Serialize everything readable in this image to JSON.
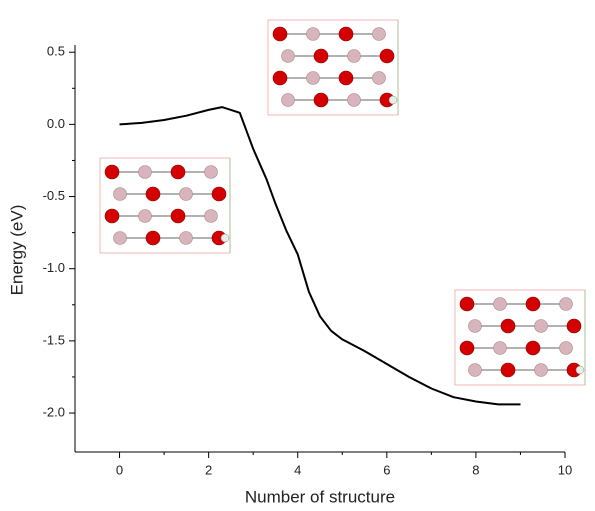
{
  "chart_data": {
    "type": "line",
    "x_label": "Number of structure",
    "y_label": "Energy (eV)",
    "xlim": [
      -1,
      10
    ],
    "xticks": [
      0,
      2,
      4,
      6,
      8,
      10
    ],
    "ylim": [
      -2.27,
      0.55
    ],
    "yticks": [
      {
        "value": -2,
        "label": "-2.0"
      },
      -1.5,
      {
        "value": -1,
        "label": "-1.0"
      },
      -0.5,
      {
        "value": 0,
        "label": "0.0"
      },
      0.5
    ],
    "series": [
      {
        "color": "#000000",
        "x": [
          0,
          0.5,
          1,
          1.5,
          2,
          2.3,
          2.7,
          3,
          3.3,
          3.5,
          3.75,
          4,
          4.25,
          4.5,
          4.75,
          5,
          5.5,
          6,
          6.5,
          7,
          7.5,
          8,
          8.5,
          9
        ],
        "values": [
          0.0,
          0.01,
          0.03,
          0.06,
          0.1,
          0.12,
          0.08,
          -0.17,
          -0.38,
          -0.55,
          -0.74,
          -0.9,
          -1.16,
          -1.33,
          -1.43,
          -1.49,
          -1.57,
          -1.66,
          -1.75,
          -1.83,
          -1.89,
          -1.92,
          -1.94,
          -1.94
        ]
      }
    ]
  }
}
